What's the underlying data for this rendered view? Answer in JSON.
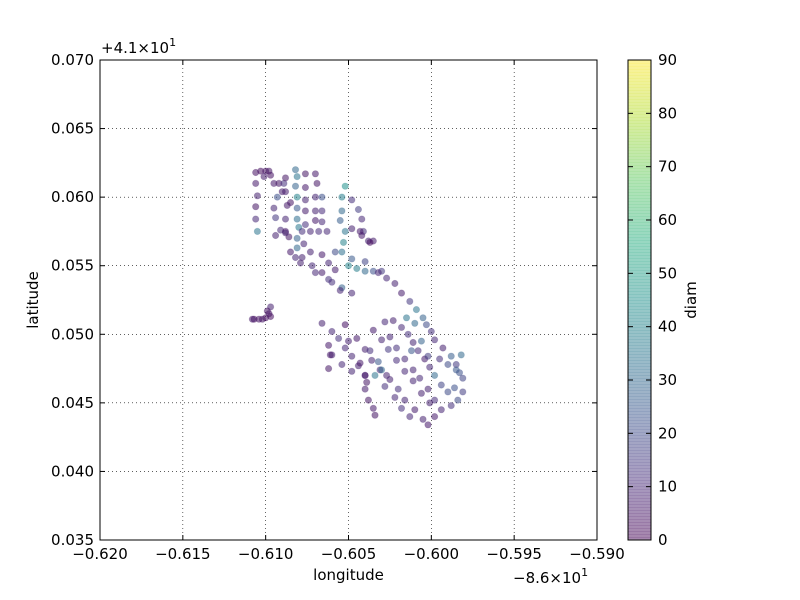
{
  "chart_data": {
    "type": "scatter",
    "title": "",
    "xlabel": "longitude",
    "ylabel": "latitude",
    "xlim": [
      -0.62,
      -0.59
    ],
    "ylim": [
      0.035,
      0.07
    ],
    "x_offset_label": "−8.6×10",
    "x_offset_exp": "1",
    "y_offset_label": "+4.1×10",
    "y_offset_exp": "1",
    "x_ticks": [
      "−0.620",
      "−0.615",
      "−0.610",
      "−0.605",
      "−0.600",
      "−0.595",
      "−0.590"
    ],
    "y_ticks": [
      "0.035",
      "0.040",
      "0.045",
      "0.050",
      "0.055",
      "0.060",
      "0.065",
      "0.070"
    ],
    "x_tick_values": [
      -0.62,
      -0.615,
      -0.61,
      -0.605,
      -0.6,
      -0.595,
      -0.59
    ],
    "y_tick_values": [
      0.035,
      0.04,
      0.045,
      0.05,
      0.055,
      0.06,
      0.065,
      0.07
    ],
    "grid": true,
    "colorbar": {
      "label": "diam",
      "range": [
        0,
        90
      ],
      "ticks": [
        "0",
        "10",
        "20",
        "30",
        "40",
        "50",
        "60",
        "70",
        "80",
        "90"
      ],
      "tick_values": [
        0,
        10,
        20,
        30,
        40,
        50,
        60,
        70,
        80,
        90
      ],
      "colormap": "viridis",
      "alpha": 0.5
    },
    "points": [
      [
        -0.6106,
        0.0618,
        4
      ],
      [
        -0.6106,
        0.061,
        6
      ],
      [
        -0.6105,
        0.0601,
        8
      ],
      [
        -0.6106,
        0.0593,
        5
      ],
      [
        -0.6106,
        0.0584,
        10
      ],
      [
        -0.6105,
        0.0575,
        35
      ],
      [
        -0.6103,
        0.0619,
        3
      ],
      [
        -0.61,
        0.0619,
        4
      ],
      [
        -0.6098,
        0.0619,
        5
      ],
      [
        -0.6101,
        0.0615,
        7
      ],
      [
        -0.6097,
        0.0616,
        4
      ],
      [
        -0.6095,
        0.061,
        6
      ],
      [
        -0.6092,
        0.061,
        5
      ],
      [
        -0.6089,
        0.061,
        12
      ],
      [
        -0.6093,
        0.06,
        22
      ],
      [
        -0.6095,
        0.0592,
        9
      ],
      [
        -0.6094,
        0.0585,
        14
      ],
      [
        -0.6091,
        0.0576,
        10
      ],
      [
        -0.6094,
        0.0572,
        8
      ],
      [
        -0.6088,
        0.0575,
        6
      ],
      [
        -0.6086,
        0.0571,
        5
      ],
      [
        -0.6088,
        0.0614,
        5
      ],
      [
        -0.6088,
        0.0604,
        7
      ],
      [
        -0.6087,
        0.0594,
        6
      ],
      [
        -0.6088,
        0.0584,
        9
      ],
      [
        -0.6088,
        0.0574,
        8
      ],
      [
        -0.6082,
        0.062,
        30
      ],
      [
        -0.6081,
        0.0615,
        35
      ],
      [
        -0.6082,
        0.0608,
        28
      ],
      [
        -0.6081,
        0.06,
        40
      ],
      [
        -0.6081,
        0.0592,
        25
      ],
      [
        -0.6081,
        0.0584,
        32
      ],
      [
        -0.608,
        0.0578,
        36
      ],
      [
        -0.6081,
        0.057,
        28
      ],
      [
        -0.6081,
        0.0563,
        30
      ],
      [
        -0.6078,
        0.0575,
        12
      ],
      [
        -0.6073,
        0.0575,
        9
      ],
      [
        -0.6068,
        0.0575,
        11
      ],
      [
        -0.6063,
        0.0575,
        10
      ],
      [
        -0.6076,
        0.0617,
        5
      ],
      [
        -0.6076,
        0.0607,
        6
      ],
      [
        -0.6076,
        0.0598,
        8
      ],
      [
        -0.6076,
        0.059,
        7
      ],
      [
        -0.6076,
        0.058,
        12
      ],
      [
        -0.607,
        0.0617,
        6
      ],
      [
        -0.6069,
        0.061,
        5
      ],
      [
        -0.607,
        0.06,
        9
      ],
      [
        -0.607,
        0.059,
        8
      ],
      [
        -0.607,
        0.0583,
        6
      ],
      [
        -0.6066,
        0.06,
        22
      ],
      [
        -0.6066,
        0.059,
        11
      ],
      [
        -0.6066,
        0.0582,
        10
      ],
      [
        -0.6052,
        0.0608,
        45
      ],
      [
        -0.6054,
        0.06,
        38
      ],
      [
        -0.6054,
        0.059,
        30
      ],
      [
        -0.6055,
        0.0583,
        26
      ],
      [
        -0.6052,
        0.0575,
        35
      ],
      [
        -0.6053,
        0.0567,
        40
      ],
      [
        -0.6054,
        0.056,
        33
      ],
      [
        -0.6048,
        0.0598,
        12
      ],
      [
        -0.6044,
        0.0591,
        16
      ],
      [
        -0.6042,
        0.0584,
        10
      ],
      [
        -0.6041,
        0.0575,
        12
      ],
      [
        -0.6038,
        0.0568,
        9
      ],
      [
        -0.6043,
        0.0575,
        6
      ],
      [
        -0.6035,
        0.0568,
        7
      ],
      [
        -0.6078,
        0.0556,
        8
      ],
      [
        -0.6072,
        0.055,
        10
      ],
      [
        -0.6066,
        0.0545,
        7
      ],
      [
        -0.606,
        0.0538,
        12
      ],
      [
        -0.6054,
        0.0534,
        28
      ],
      [
        -0.6048,
        0.053,
        9
      ],
      [
        -0.6066,
        0.0558,
        6
      ],
      [
        -0.6062,
        0.0552,
        9
      ],
      [
        -0.6058,
        0.0547,
        7
      ],
      [
        -0.605,
        0.055,
        40
      ],
      [
        -0.6045,
        0.0548,
        38
      ],
      [
        -0.604,
        0.0546,
        30
      ],
      [
        -0.6035,
        0.0546,
        22
      ],
      [
        -0.603,
        0.0546,
        15
      ],
      [
        -0.6058,
        0.056,
        20
      ],
      [
        -0.6048,
        0.0555,
        25
      ],
      [
        -0.604,
        0.0553,
        18
      ],
      [
        -0.6032,
        0.0545,
        9
      ],
      [
        -0.6027,
        0.0541,
        10
      ],
      [
        -0.6022,
        0.0537,
        8
      ],
      [
        -0.6018,
        0.053,
        7
      ],
      [
        -0.6013,
        0.0524,
        14
      ],
      [
        -0.6009,
        0.0518,
        35
      ],
      [
        -0.6005,
        0.0512,
        28
      ],
      [
        -0.6003,
        0.0507,
        20
      ],
      [
        -0.6,
        0.0502,
        12
      ],
      [
        -0.5998,
        0.0496,
        10
      ],
      [
        -0.5993,
        0.049,
        8
      ],
      [
        -0.5988,
        0.0484,
        26
      ],
      [
        -0.5985,
        0.0478,
        15
      ],
      [
        -0.5983,
        0.0472,
        22
      ],
      [
        -0.5982,
        0.0485,
        30
      ],
      [
        -0.6023,
        0.051,
        8
      ],
      [
        -0.6018,
        0.0505,
        10
      ],
      [
        -0.6014,
        0.05,
        12
      ],
      [
        -0.6011,
        0.0494,
        9
      ],
      [
        -0.6008,
        0.0488,
        11
      ],
      [
        -0.6004,
        0.0482,
        7
      ],
      [
        -0.6001,
        0.0476,
        10
      ],
      [
        -0.5998,
        0.047,
        30
      ],
      [
        -0.5994,
        0.0463,
        18
      ],
      [
        -0.599,
        0.0458,
        20
      ],
      [
        -0.6025,
        0.0498,
        9
      ],
      [
        -0.6021,
        0.049,
        12
      ],
      [
        -0.6016,
        0.0482,
        10
      ],
      [
        -0.6011,
        0.0474,
        9
      ],
      [
        -0.6007,
        0.0468,
        10
      ],
      [
        -0.6002,
        0.046,
        8
      ],
      [
        -0.5998,
        0.0452,
        11
      ],
      [
        -0.5994,
        0.0445,
        9
      ],
      [
        -0.6035,
        0.0503,
        7
      ],
      [
        -0.603,
        0.0496,
        9
      ],
      [
        -0.6026,
        0.0489,
        14
      ],
      [
        -0.6021,
        0.0481,
        11
      ],
      [
        -0.6016,
        0.0473,
        10
      ],
      [
        -0.6011,
        0.0466,
        9
      ],
      [
        -0.6006,
        0.0457,
        8
      ],
      [
        -0.6001,
        0.045,
        8
      ],
      [
        -0.5998,
        0.044,
        6
      ],
      [
        -0.6045,
        0.0497,
        6
      ],
      [
        -0.604,
        0.0489,
        8
      ],
      [
        -0.6036,
        0.0481,
        9
      ],
      [
        -0.6031,
        0.0474,
        10
      ],
      [
        -0.6025,
        0.0467,
        8
      ],
      [
        -0.602,
        0.046,
        12
      ],
      [
        -0.6016,
        0.0452,
        9
      ],
      [
        -0.601,
        0.0445,
        7
      ],
      [
        -0.6005,
        0.0438,
        8
      ],
      [
        -0.6002,
        0.0434,
        6
      ],
      [
        -0.6066,
        0.0508,
        8
      ],
      [
        -0.606,
        0.0502,
        10
      ],
      [
        -0.6056,
        0.0497,
        12
      ],
      [
        -0.6052,
        0.049,
        10
      ],
      [
        -0.6048,
        0.0484,
        9
      ],
      [
        -0.6044,
        0.0477,
        8
      ],
      [
        -0.604,
        0.047,
        6
      ],
      [
        -0.6039,
        0.0465,
        5
      ],
      [
        -0.6062,
        0.0492,
        6
      ],
      [
        -0.606,
        0.0485,
        8
      ],
      [
        -0.6054,
        0.0478,
        10
      ],
      [
        -0.6048,
        0.0473,
        9
      ],
      [
        -0.6037,
        0.0488,
        12
      ],
      [
        -0.6032,
        0.048,
        24
      ],
      [
        -0.603,
        0.0474,
        30
      ],
      [
        -0.6027,
        0.047,
        8
      ],
      [
        -0.6043,
        0.0479,
        6
      ],
      [
        -0.604,
        0.047,
        7
      ],
      [
        -0.604,
        0.046,
        7
      ],
      [
        -0.6038,
        0.0452,
        5
      ],
      [
        -0.6035,
        0.0446,
        6
      ],
      [
        -0.6034,
        0.0441,
        5
      ],
      [
        -0.6052,
        0.0507,
        4
      ],
      [
        -0.605,
        0.0495,
        8
      ],
      [
        -0.6061,
        0.0485,
        6
      ],
      [
        -0.6062,
        0.0475,
        5
      ],
      [
        -0.6002,
        0.0484,
        16
      ],
      [
        -0.5995,
        0.0482,
        12
      ],
      [
        -0.599,
        0.0478,
        20
      ],
      [
        -0.5985,
        0.0474,
        24
      ],
      [
        -0.5981,
        0.0468,
        18
      ],
      [
        -0.5986,
        0.0461,
        22
      ],
      [
        -0.5984,
        0.0452,
        20
      ],
      [
        -0.5981,
        0.0458,
        16
      ],
      [
        -0.5988,
        0.0448,
        12
      ],
      [
        -0.6107,
        0.0511,
        3
      ],
      [
        -0.6104,
        0.0511,
        4
      ],
      [
        -0.6102,
        0.0511,
        5
      ],
      [
        -0.61,
        0.0512,
        3
      ],
      [
        -0.6098,
        0.0515,
        5
      ],
      [
        -0.6097,
        0.052,
        8
      ],
      [
        -0.6099,
        0.0517,
        4
      ],
      [
        -0.6108,
        0.0511,
        6
      ],
      [
        -0.6097,
        0.0513,
        3
      ],
      [
        -0.6037,
        0.0567,
        3
      ],
      [
        -0.6042,
        0.0572,
        6
      ],
      [
        -0.6048,
        0.0577,
        8
      ],
      [
        -0.6085,
        0.056,
        6
      ],
      [
        -0.6082,
        0.0556,
        9
      ],
      [
        -0.6079,
        0.0552,
        8
      ],
      [
        -0.607,
        0.0545,
        10
      ],
      [
        -0.6062,
        0.054,
        12
      ],
      [
        -0.6055,
        0.0532,
        9
      ],
      [
        -0.609,
        0.0604,
        7
      ],
      [
        -0.6085,
        0.0596,
        5
      ],
      [
        -0.6077,
        0.0566,
        9
      ],
      [
        -0.6073,
        0.056,
        8
      ],
      [
        -0.6028,
        0.0509,
        10
      ],
      [
        -0.6015,
        0.0512,
        35
      ],
      [
        -0.601,
        0.0508,
        30
      ],
      [
        -0.6006,
        0.0495,
        28
      ],
      [
        -0.6012,
        0.0488,
        24
      ],
      [
        -0.6034,
        0.047,
        35
      ],
      [
        -0.6028,
        0.0462,
        12
      ],
      [
        -0.6022,
        0.0454,
        10
      ],
      [
        -0.6018,
        0.0446,
        12
      ],
      [
        -0.6013,
        0.044,
        10
      ]
    ]
  }
}
